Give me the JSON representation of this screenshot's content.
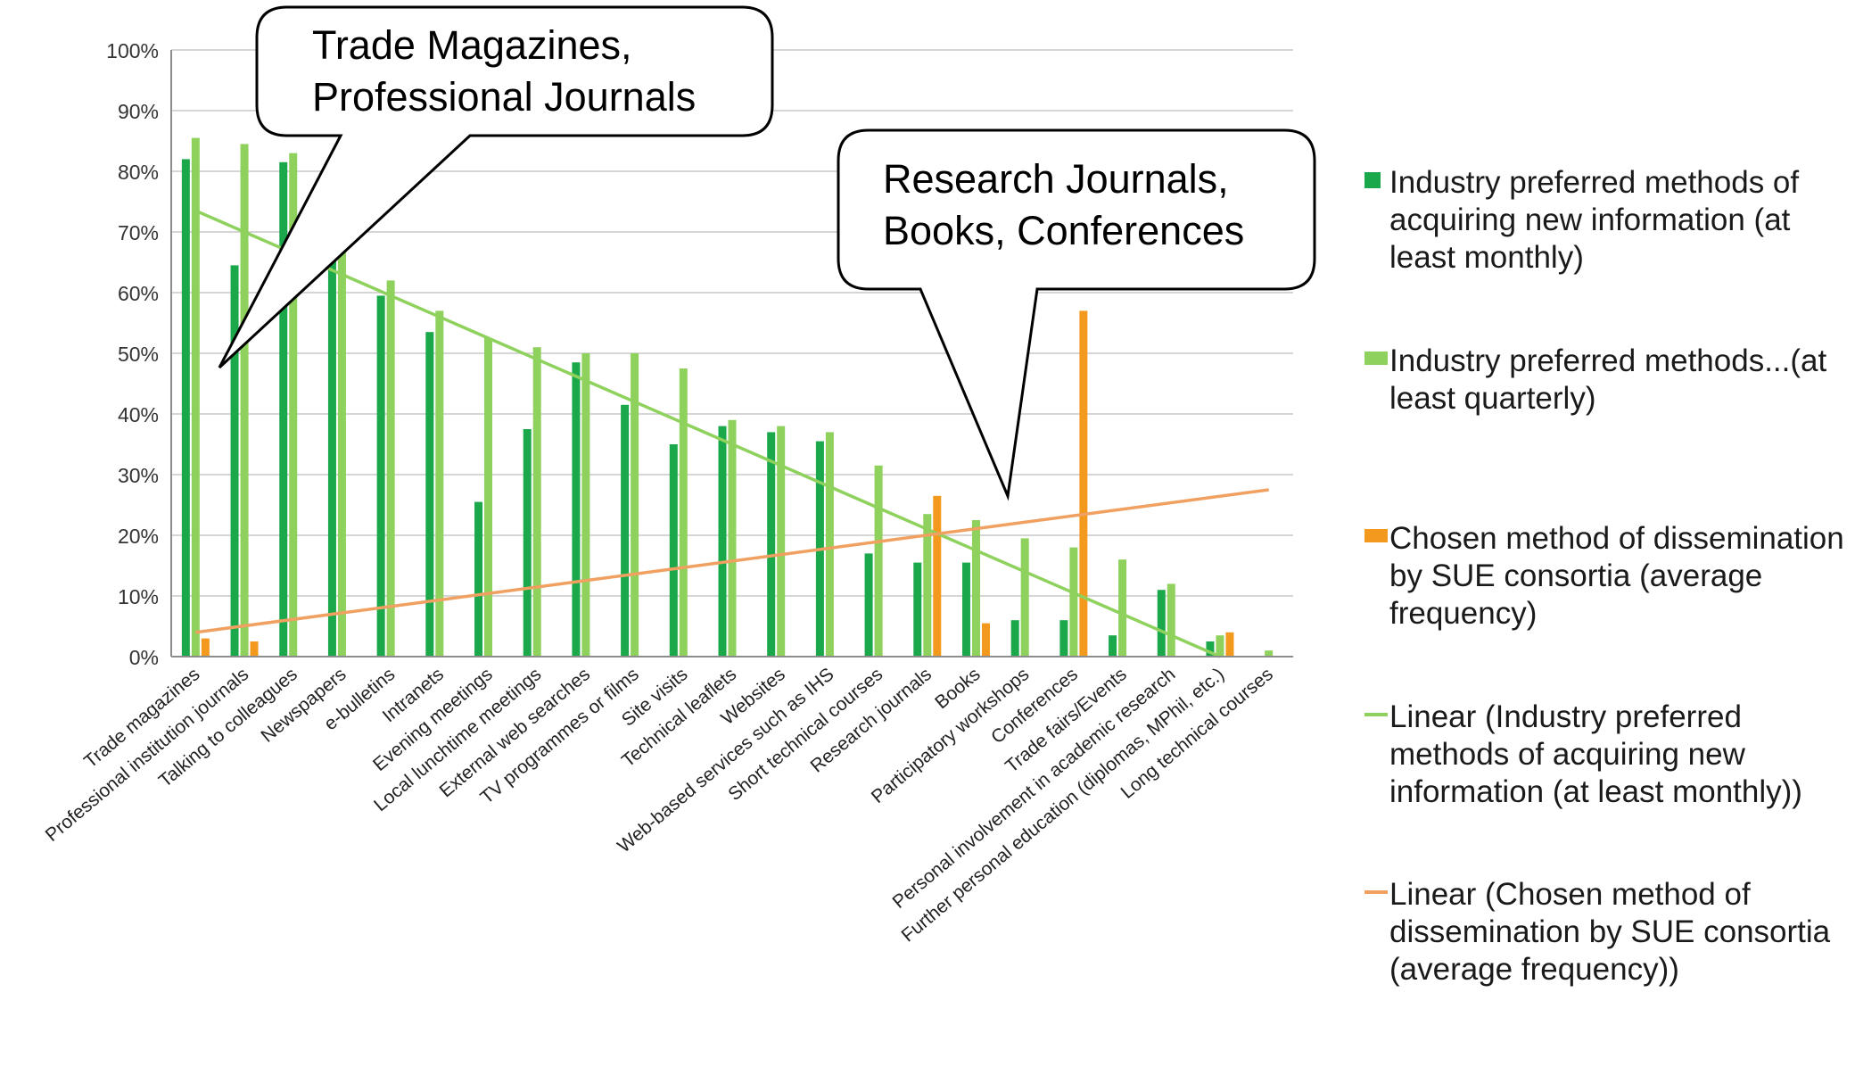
{
  "chart_data": {
    "type": "bar",
    "categories": [
      "Trade magazines",
      "Professional institution journals",
      "Talking to colleagues",
      "Newspapers",
      "e-bulletins",
      "Intranets",
      "Evening meetings",
      "Local lunchtime meetings",
      "External web searches",
      "TV programmes or films",
      "Site visits",
      "Technical leaflets",
      "Websites",
      "Web-based services such as IHS",
      "Short technical courses",
      "Research journals",
      "Books",
      "Participatory workshops",
      "Conferences",
      "Trade fairs/Events",
      "Personal involvement in academic research",
      "Further personal education (diplomas, MPhil, etc.)",
      "Long technical courses"
    ],
    "series": [
      {
        "name": "Industry preferred methods of acquiring new information (at least monthly)",
        "color": "#1aa84a",
        "values": [
          82,
          64.5,
          81.5,
          74,
          59.5,
          53.5,
          25.5,
          37.5,
          48.5,
          41.5,
          35,
          38,
          37,
          35.5,
          17,
          15.5,
          15.5,
          6,
          6,
          3.5,
          11,
          2.5,
          null
        ]
      },
      {
        "name": "Industry preferred methods...(at least quarterly)",
        "color": "#8ed15c",
        "values": [
          85.5,
          84.5,
          83,
          73.5,
          62,
          57,
          52.5,
          51,
          50,
          50,
          47.5,
          39,
          38,
          37,
          31.5,
          23.5,
          22.5,
          19.5,
          18,
          16,
          12,
          3.5,
          1
        ]
      },
      {
        "name": "Chosen method of dissemination by SUE consortia (average frequency)",
        "color": "#f39a1e",
        "values": [
          3,
          2.5,
          null,
          null,
          null,
          null,
          null,
          null,
          null,
          null,
          null,
          null,
          null,
          null,
          null,
          26.5,
          5.5,
          null,
          57,
          null,
          null,
          4,
          null
        ]
      }
    ],
    "trendlines": [
      {
        "name": "Linear (Industry preferred methods of acquiring new information (at least monthly))",
        "color": "#8ed15c",
        "from": [
          1,
          73.5
        ],
        "to": [
          22,
          0
        ]
      },
      {
        "name": "Linear (Chosen method of dissemination by SUE consortia (average frequency))",
        "color": "#f0a060",
        "from": [
          1,
          4
        ],
        "to": [
          23,
          27.5
        ]
      }
    ],
    "ylim": [
      0,
      100
    ],
    "yticks": [
      "0%",
      "10%",
      "20%",
      "30%",
      "40%",
      "50%",
      "60%",
      "70%",
      "80%",
      "90%",
      "100%"
    ],
    "grid": true,
    "legend_position": "right",
    "annotations": [
      {
        "lines": [
          "Trade Magazines,",
          "Professional Journals"
        ]
      },
      {
        "lines": [
          "Research Journals,",
          "Books, Conferences"
        ]
      }
    ]
  },
  "legend": {
    "items": [
      {
        "label": "Industry preferred methods of acquiring new information (at least monthly)",
        "color": "#1aa84a",
        "kind": "square"
      },
      {
        "label": "Industry preferred methods...(at least quarterly)",
        "color": "#8ed15c",
        "kind": "bar"
      },
      {
        "label": "Chosen method of dissemination by SUE consortia (average frequency)",
        "color": "#f39a1e",
        "kind": "bar"
      },
      {
        "label": "Linear (Industry preferred methods of acquiring new information (at least monthly))",
        "color": "#8ed15c",
        "kind": "line"
      },
      {
        "label": "Linear (Chosen method of dissemination by SUE consortia (average frequency))",
        "color": "#f0a060",
        "kind": "line"
      }
    ]
  }
}
